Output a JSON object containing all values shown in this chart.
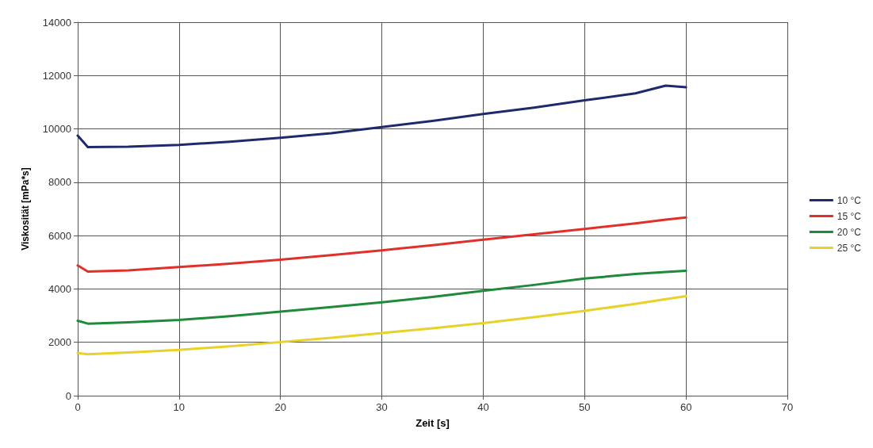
{
  "chart_data": {
    "type": "line",
    "xlabel": "Zeit [s]",
    "ylabel": "Viskosität [mPa*s]",
    "x": [
      0,
      1,
      5,
      10,
      15,
      20,
      25,
      30,
      35,
      40,
      45,
      50,
      55,
      58,
      60
    ],
    "xlim": [
      0,
      70
    ],
    "xticks": [
      0,
      10,
      20,
      30,
      40,
      50,
      60,
      70
    ],
    "ylim": [
      0,
      14000
    ],
    "yticks": [
      0,
      2000,
      4000,
      6000,
      8000,
      10000,
      12000,
      14000
    ],
    "grid": true,
    "legend": "right",
    "marker": "none",
    "line_style": "solid",
    "series": [
      {
        "name": "10 °C",
        "color": "#1f2a6e",
        "values": [
          9750,
          9320,
          9330,
          9400,
          9520,
          9670,
          9840,
          10070,
          10300,
          10560,
          10800,
          11070,
          11330,
          11620,
          11560
        ]
      },
      {
        "name": "15 °C",
        "color": "#e0302a",
        "values": [
          4880,
          4650,
          4700,
          4820,
          4950,
          5100,
          5270,
          5450,
          5640,
          5850,
          6050,
          6250,
          6460,
          6600,
          6680
        ]
      },
      {
        "name": "20 °C",
        "color": "#1e8a3a",
        "values": [
          2810,
          2700,
          2750,
          2840,
          2980,
          3150,
          3320,
          3500,
          3700,
          3930,
          4150,
          4390,
          4560,
          4640,
          4680
        ]
      },
      {
        "name": "25 °C",
        "color": "#e8d22a",
        "values": [
          1600,
          1550,
          1620,
          1720,
          1850,
          2010,
          2170,
          2350,
          2530,
          2720,
          2940,
          3180,
          3440,
          3620,
          3730
        ]
      }
    ]
  }
}
